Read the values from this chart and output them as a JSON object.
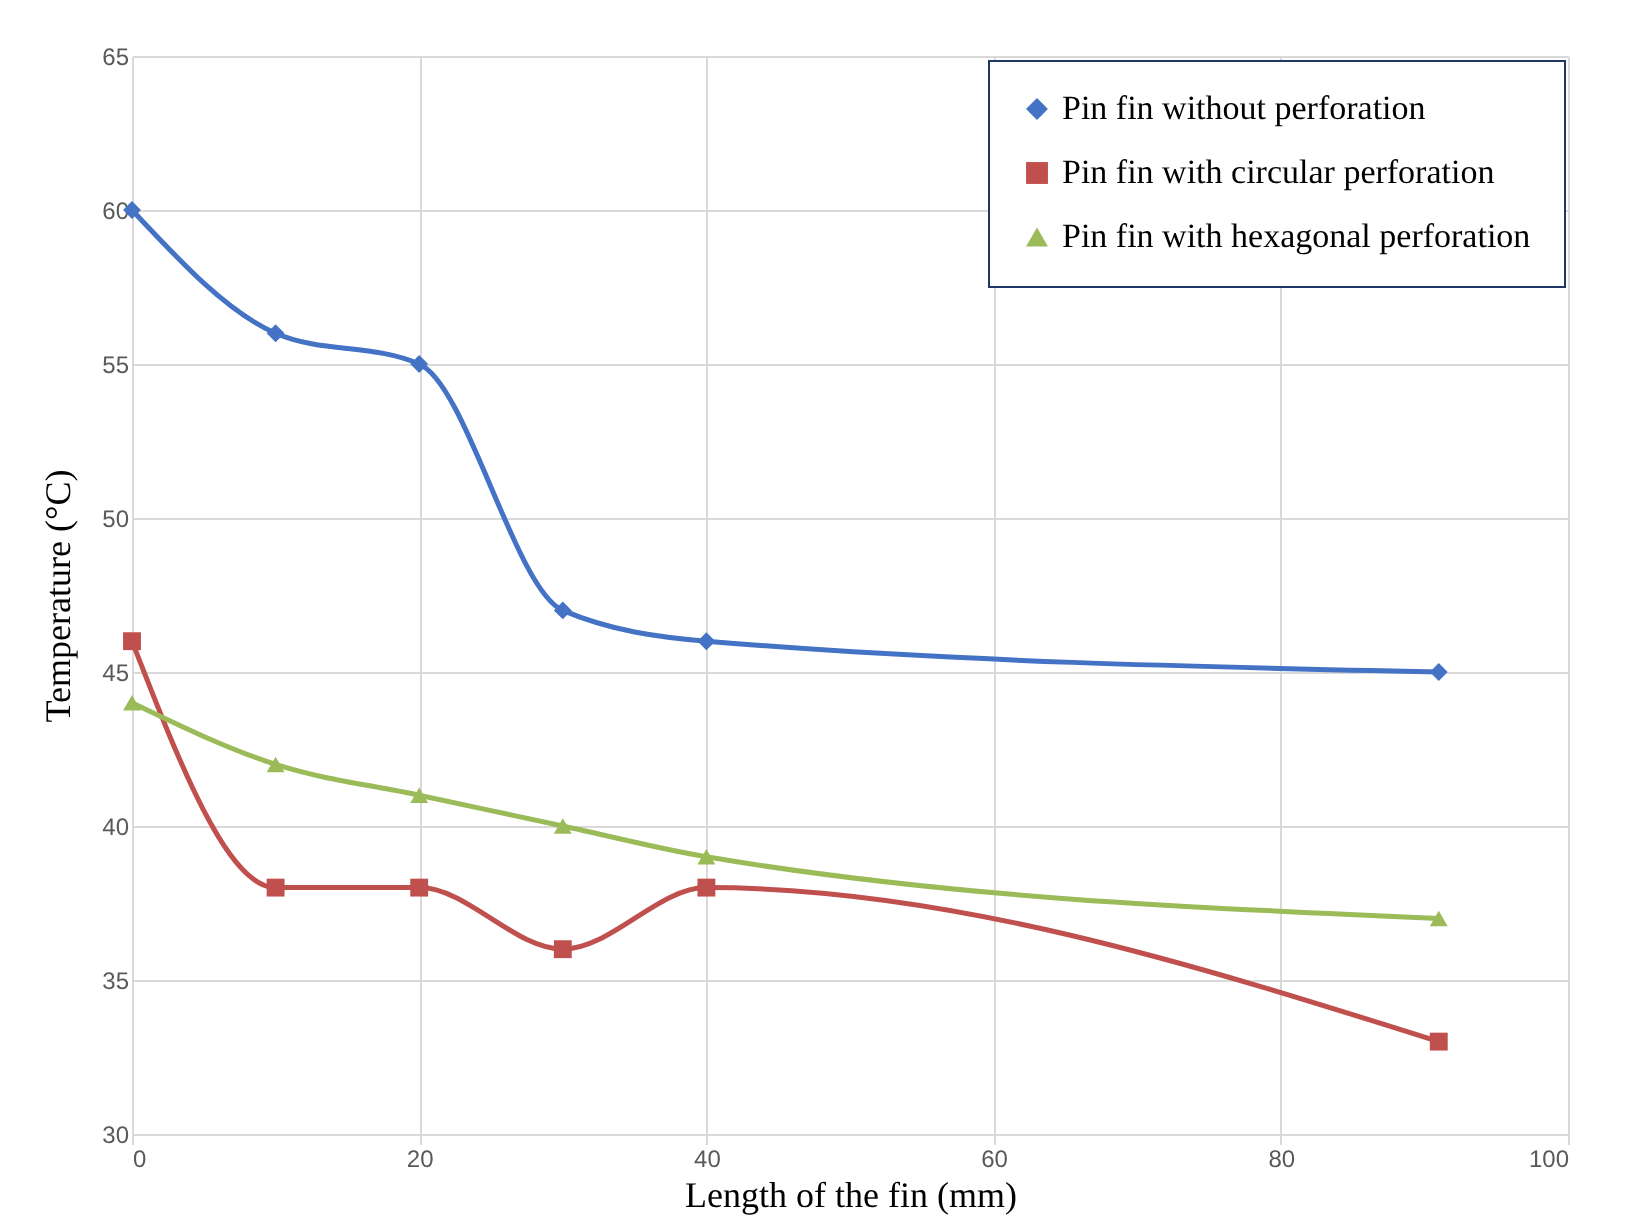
{
  "chart_data": {
    "type": "line",
    "xlabel": "Length of the fin (mm)",
    "ylabel": "Temperature (°C)",
    "x": [
      0,
      10,
      20,
      30,
      40,
      91
    ],
    "series": [
      {
        "name": "Pin fin without perforation",
        "color": "#4472c4",
        "marker": "diamond",
        "values": [
          60,
          56,
          55,
          47,
          46,
          45
        ]
      },
      {
        "name": "Pin fin with circular perforation",
        "color": "#c0504d",
        "marker": "square",
        "values": [
          46,
          38,
          38,
          36,
          38,
          33
        ]
      },
      {
        "name": "Pin fin with hexagonal perforation",
        "color": "#9bbb59",
        "marker": "triangle",
        "values": [
          44,
          42,
          41,
          40,
          39,
          37
        ]
      }
    ],
    "xlim": [
      0,
      100
    ],
    "xticks": [
      0,
      20,
      40,
      60,
      80,
      100
    ],
    "ylim": [
      30,
      65
    ],
    "yticks": [
      30,
      35,
      40,
      45,
      50,
      55,
      60,
      65
    ],
    "grid": true,
    "legend": "top right",
    "line_style": "solid"
  }
}
